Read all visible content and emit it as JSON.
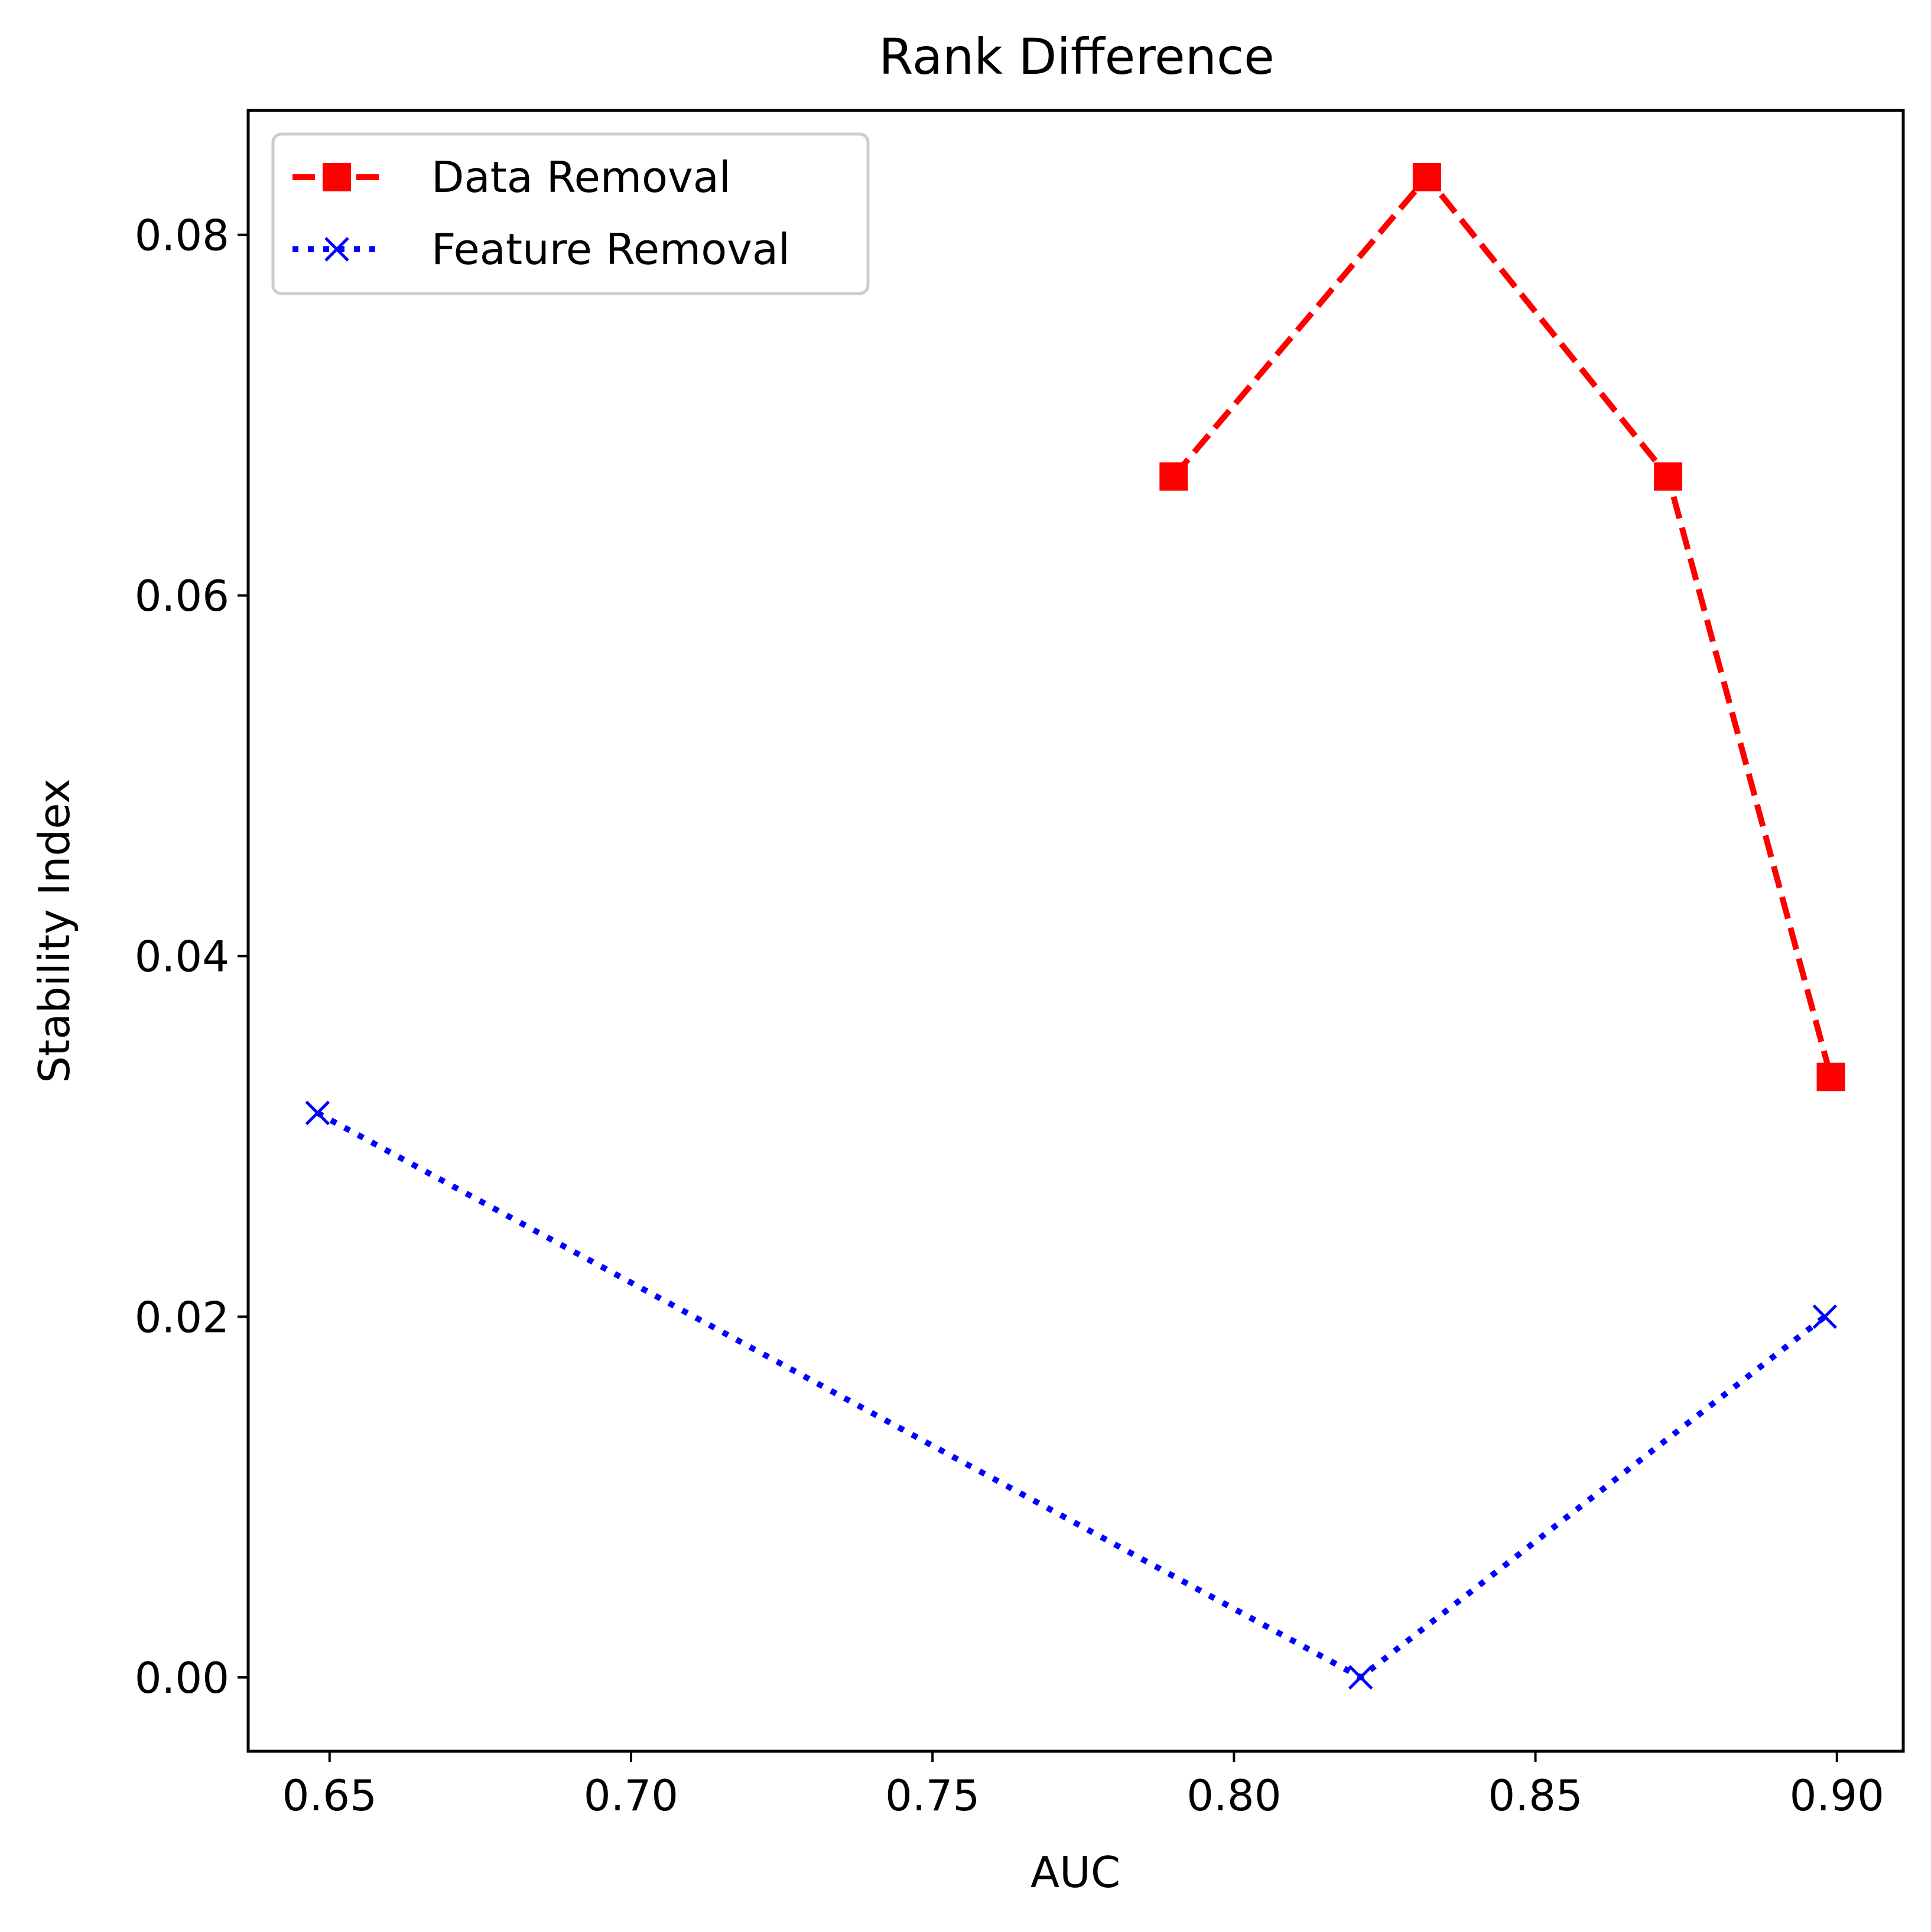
{
  "chart_data": {
    "type": "line",
    "title": "Rank Difference",
    "xlabel": "AUC",
    "ylabel": "Stability Index",
    "xlim": [
      0.6365,
      0.911
    ],
    "ylim": [
      -0.0041,
      0.0869
    ],
    "x_ticks": [
      0.65,
      0.7,
      0.75,
      0.8,
      0.85,
      0.9
    ],
    "x_tick_labels": [
      "0.65",
      "0.70",
      "0.75",
      "0.80",
      "0.85",
      "0.90"
    ],
    "y_ticks": [
      0.0,
      0.02,
      0.04,
      0.06,
      0.08
    ],
    "y_tick_labels": [
      "0.00",
      "0.02",
      "0.04",
      "0.06",
      "0.08"
    ],
    "grid": false,
    "legend_position": "top-left",
    "series": [
      {
        "name": "Data Removal",
        "color": "#ff0000",
        "line_style": "dashed",
        "marker": "square",
        "x": [
          0.79,
          0.832,
          0.872,
          0.899
        ],
        "y": [
          0.0666,
          0.0832,
          0.0666,
          0.0333
        ]
      },
      {
        "name": "Feature Removal",
        "color": "#0000ff",
        "line_style": "dotted",
        "marker": "x",
        "x": [
          0.648,
          0.821,
          0.898
        ],
        "y": [
          0.0313,
          0.0,
          0.02
        ]
      }
    ]
  }
}
